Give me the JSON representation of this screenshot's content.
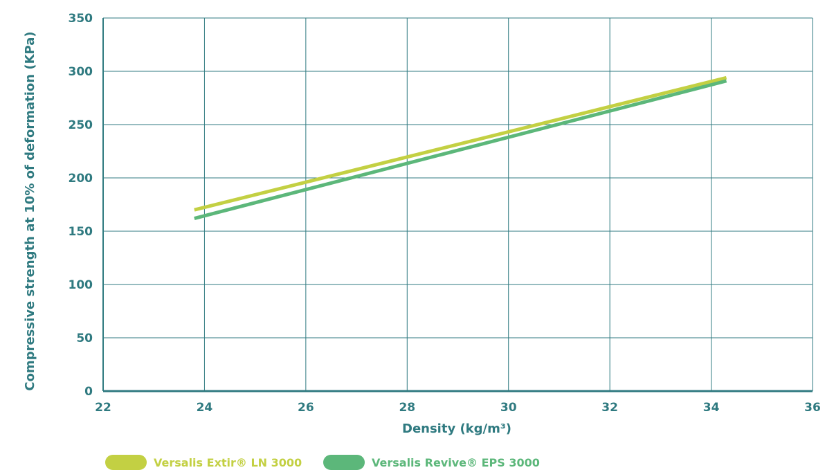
{
  "chart_data": {
    "type": "line",
    "title": "",
    "xlabel": "Density (kg/m³)",
    "ylabel": "Compressive strength at 10% of deformation (KPa)",
    "xlim": [
      22,
      36
    ],
    "ylim": [
      0,
      350
    ],
    "xticks": [
      22,
      24,
      26,
      28,
      30,
      32,
      34,
      36
    ],
    "yticks": [
      0,
      50,
      100,
      150,
      200,
      250,
      300,
      350
    ],
    "grid": true,
    "legend_position": "bottom-left",
    "series": [
      {
        "name": "Versalis Extir® LN 3000",
        "color": "#c3d043",
        "x": [
          23.8,
          34.3
        ],
        "y": [
          170,
          294
        ]
      },
      {
        "name": "Versalis Revive® EPS 3000",
        "color": "#5cb77a",
        "x": [
          23.8,
          34.3
        ],
        "y": [
          162,
          291
        ]
      }
    ],
    "colors": {
      "axis": "#2f7a80",
      "grid": "#2f7a80",
      "text": "#2f7a80"
    }
  }
}
